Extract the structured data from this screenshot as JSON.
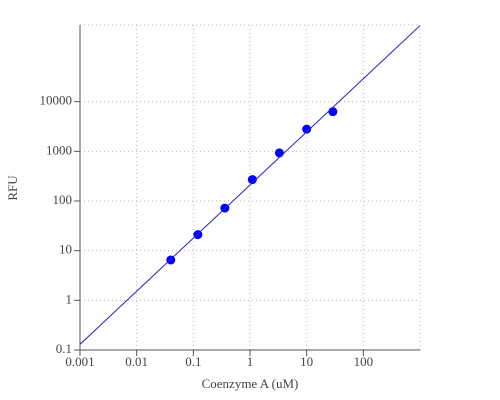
{
  "chart_data": {
    "type": "scatter",
    "x_label": "Coenzyme A (uM)",
    "y_label": "RFU",
    "xscale": "log",
    "yscale": "log",
    "grid": true,
    "xlim": [
      0.001,
      1000
    ],
    "ylim": [
      0.1,
      350000
    ],
    "xticks": [
      0.001,
      0.01,
      0.1,
      1,
      10,
      100
    ],
    "yticks": [
      0.1,
      1,
      10,
      100,
      1000,
      10000
    ],
    "series": [
      {
        "mode": "markers",
        "color": "#0000ff",
        "x": [
          0.04,
          0.12,
          0.36,
          1.1,
          3.3,
          10,
          29
        ],
        "values": [
          6.5,
          21,
          72,
          270,
          930,
          2800,
          6300
        ]
      },
      {
        "mode": "line",
        "color": "#2222cc",
        "x": [
          0.001,
          1000
        ],
        "values": [
          0.13,
          340000
        ]
      }
    ]
  }
}
